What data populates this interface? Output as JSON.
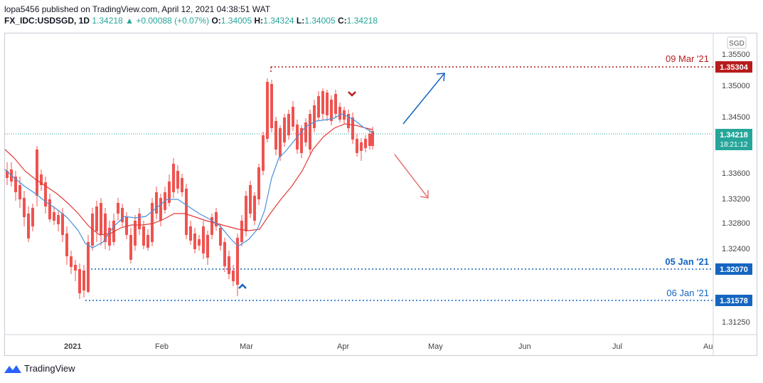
{
  "header": {
    "published_line": "lopa5456 published on TradingView.com, April 12, 2021 04:38:51 WAT",
    "symbol": "FX_IDC:USDSGD, 1D",
    "last": "1.34218",
    "change": "+0.00088 (+0.07%)",
    "o_label": "O:",
    "o_value": "1.34005",
    "h_label": "H:",
    "h_value": "1.34324",
    "l_label": "L:",
    "l_value": "1.34005",
    "c_label": "C:",
    "c_value": "1.34218"
  },
  "currency_badge": "SGD",
  "price_axis": {
    "ticks": [
      "1.35500",
      "1.35000",
      "1.34500",
      "1.33600",
      "1.33200",
      "1.32800",
      "1.32400",
      "1.31250"
    ]
  },
  "time_axis": {
    "ticks": [
      "2021",
      "Feb",
      "Mar",
      "Apr",
      "May",
      "Jun",
      "Jul",
      "Au"
    ]
  },
  "price_tags": {
    "last_price": "1.34218",
    "countdown": "18:21:12",
    "level_high": "1.35304",
    "level_mid": "1.32070",
    "level_low": "1.31578"
  },
  "level_labels": {
    "high": "09 Mar '21",
    "mid": "05 Jan '21",
    "low": "06 Jan '21"
  },
  "colors": {
    "up": "#26a69a",
    "down": "#ef5350",
    "ma_fast": "#4a90d9",
    "ma_slow": "#e53935",
    "level_high": "#b71c1c",
    "level_low": "#1565c0"
  },
  "footer": {
    "brand": "TradingView"
  }
}
